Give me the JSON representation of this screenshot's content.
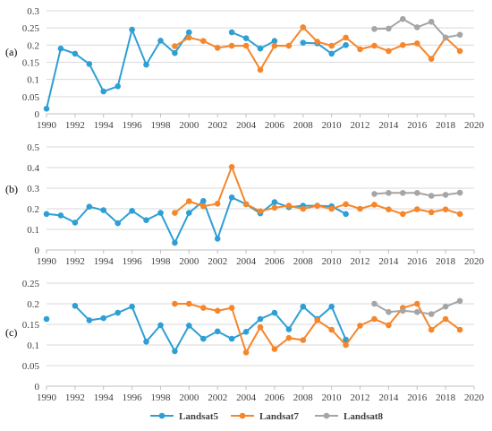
{
  "colors": {
    "Landsat5": "#2e9fd4",
    "Landsat7": "#f5862b",
    "Landsat8": "#a5a5a5"
  },
  "legend": [
    "Landsat5",
    "Landsat7",
    "Landsat8"
  ],
  "chart_data": [
    {
      "type": "line",
      "panel_label": "(a)",
      "xlim": [
        1990,
        2020
      ],
      "ylim": [
        0,
        0.3
      ],
      "x_ticks": [
        "1990",
        "1992",
        "1994",
        "1996",
        "1998",
        "2000",
        "2002",
        "2004",
        "2006",
        "2008",
        "2010",
        "2012",
        "2014",
        "2016",
        "2018",
        "2020"
      ],
      "y_ticks": [
        "0",
        "0.05",
        "0.1",
        "0.15",
        "0.2",
        "0.25",
        "0.3"
      ],
      "grid": "horizontal",
      "legend_position": "bottom",
      "series": [
        {
          "name": "Landsat5",
          "points": [
            [
              1990,
              0.015
            ],
            [
              1991,
              0.19
            ],
            [
              1992,
              0.175
            ],
            [
              1993,
              0.145
            ],
            [
              1994,
              0.065
            ],
            [
              1995,
              0.08
            ],
            [
              1996,
              0.245
            ],
            [
              1997,
              0.143
            ],
            [
              1998,
              0.213
            ],
            [
              1999,
              0.177
            ],
            [
              2000,
              0.237
            ],
            null,
            [
              2003,
              0.237
            ],
            [
              2004,
              0.22
            ],
            [
              2005,
              0.19
            ],
            [
              2006,
              0.212
            ],
            null,
            [
              2008,
              0.207
            ],
            [
              2009,
              0.205
            ],
            [
              2010,
              0.175
            ],
            [
              2011,
              0.2
            ]
          ]
        },
        {
          "name": "Landsat7",
          "points": [
            [
              1999,
              0.197
            ],
            [
              2000,
              0.222
            ],
            [
              2001,
              0.212
            ],
            [
              2002,
              0.192
            ],
            [
              2003,
              0.198
            ],
            [
              2004,
              0.198
            ],
            [
              2005,
              0.128
            ],
            [
              2006,
              0.198
            ],
            [
              2007,
              0.198
            ],
            [
              2008,
              0.252
            ],
            [
              2009,
              0.21
            ],
            [
              2010,
              0.198
            ],
            [
              2011,
              0.222
            ],
            [
              2012,
              0.188
            ],
            [
              2013,
              0.198
            ],
            [
              2014,
              0.183
            ],
            [
              2015,
              0.2
            ],
            [
              2016,
              0.205
            ],
            [
              2017,
              0.16
            ],
            [
              2018,
              0.222
            ],
            [
              2019,
              0.183
            ]
          ]
        },
        {
          "name": "Landsat8",
          "points": [
            [
              2013,
              0.247
            ],
            [
              2014,
              0.248
            ],
            [
              2015,
              0.276
            ],
            [
              2016,
              0.252
            ],
            [
              2017,
              0.268
            ],
            [
              2018,
              0.222
            ],
            [
              2019,
              0.23
            ]
          ]
        }
      ]
    },
    {
      "type": "line",
      "panel_label": "(b)",
      "xlim": [
        1990,
        2020
      ],
      "ylim": [
        0,
        0.5
      ],
      "x_ticks": [
        "1990",
        "1992",
        "1994",
        "1996",
        "1998",
        "2000",
        "2002",
        "2004",
        "2006",
        "2008",
        "2010",
        "2012",
        "2014",
        "2016",
        "2018",
        "2020"
      ],
      "y_ticks": [
        "0",
        "0.1",
        "0.2",
        "0.3",
        "0.4",
        "0.5"
      ],
      "grid": "horizontal",
      "legend_position": "bottom",
      "series": [
        {
          "name": "Landsat5",
          "points": [
            [
              1990,
              0.175
            ],
            [
              1991,
              0.168
            ],
            [
              1992,
              0.133
            ],
            [
              1993,
              0.21
            ],
            [
              1994,
              0.193
            ],
            [
              1995,
              0.13
            ],
            [
              1996,
              0.19
            ],
            [
              1997,
              0.145
            ],
            [
              1998,
              0.18
            ],
            [
              1999,
              0.035
            ],
            [
              2000,
              0.18
            ],
            [
              2001,
              0.238
            ],
            [
              2002,
              0.055
            ],
            [
              2003,
              0.255
            ],
            [
              2004,
              0.222
            ],
            [
              2005,
              0.178
            ],
            [
              2006,
              0.232
            ],
            [
              2007,
              0.208
            ],
            [
              2008,
              0.215
            ],
            [
              2009,
              0.215
            ],
            [
              2010,
              0.212
            ],
            [
              2011,
              0.175
            ]
          ]
        },
        {
          "name": "Landsat7",
          "points": [
            [
              1999,
              0.18
            ],
            [
              2000,
              0.237
            ],
            [
              2001,
              0.212
            ],
            [
              2002,
              0.225
            ],
            [
              2003,
              0.403
            ],
            [
              2004,
              0.222
            ],
            [
              2005,
              0.188
            ],
            [
              2006,
              0.205
            ],
            [
              2007,
              0.215
            ],
            [
              2008,
              0.2
            ],
            [
              2009,
              0.215
            ],
            [
              2010,
              0.2
            ],
            [
              2011,
              0.222
            ],
            [
              2012,
              0.2
            ],
            [
              2013,
              0.22
            ],
            [
              2014,
              0.197
            ],
            [
              2015,
              0.175
            ],
            [
              2016,
              0.198
            ],
            [
              2017,
              0.183
            ],
            [
              2018,
              0.197
            ],
            [
              2019,
              0.175
            ]
          ]
        },
        {
          "name": "Landsat8",
          "points": [
            [
              2013,
              0.272
            ],
            [
              2014,
              0.277
            ],
            [
              2015,
              0.277
            ],
            [
              2016,
              0.277
            ],
            [
              2017,
              0.263
            ],
            [
              2018,
              0.268
            ],
            [
              2019,
              0.278
            ]
          ]
        }
      ]
    },
    {
      "type": "line",
      "panel_label": "(c)",
      "xlim": [
        1990,
        2020
      ],
      "ylim": [
        0,
        0.25
      ],
      "x_ticks": [
        "1990",
        "1992",
        "1994",
        "1996",
        "1998",
        "2000",
        "2002",
        "2004",
        "2006",
        "2008",
        "2010",
        "2012",
        "2014",
        "2016",
        "2018",
        "2020"
      ],
      "y_ticks": [
        "0",
        "0.05",
        "0.1",
        "0.15",
        "0.2",
        "0.25"
      ],
      "grid": "horizontal",
      "legend_position": "bottom",
      "series": [
        {
          "name": "Landsat5",
          "points": [
            [
              1990,
              0.163
            ],
            null,
            [
              1992,
              0.195
            ],
            [
              1993,
              0.16
            ],
            [
              1994,
              0.165
            ],
            [
              1995,
              0.178
            ],
            [
              1996,
              0.193
            ],
            [
              1997,
              0.108
            ],
            [
              1998,
              0.148
            ],
            [
              1999,
              0.085
            ],
            [
              2000,
              0.147
            ],
            [
              2001,
              0.115
            ],
            [
              2002,
              0.133
            ],
            [
              2003,
              0.115
            ],
            [
              2004,
              0.132
            ],
            [
              2005,
              0.163
            ],
            [
              2006,
              0.178
            ],
            [
              2007,
              0.138
            ],
            [
              2008,
              0.193
            ],
            [
              2009,
              0.163
            ],
            [
              2010,
              0.193
            ],
            [
              2011,
              0.113
            ]
          ]
        },
        {
          "name": "Landsat7",
          "points": [
            [
              1999,
              0.2
            ],
            [
              2000,
              0.2
            ],
            [
              2001,
              0.19
            ],
            [
              2002,
              0.183
            ],
            [
              2003,
              0.19
            ],
            [
              2004,
              0.082
            ],
            [
              2005,
              0.143
            ],
            [
              2006,
              0.09
            ],
            [
              2007,
              0.117
            ],
            [
              2008,
              0.112
            ],
            [
              2009,
              0.16
            ],
            [
              2010,
              0.137
            ],
            [
              2011,
              0.1
            ],
            [
              2012,
              0.147
            ],
            [
              2013,
              0.163
            ],
            [
              2014,
              0.148
            ],
            [
              2015,
              0.19
            ],
            [
              2016,
              0.2
            ],
            [
              2017,
              0.137
            ],
            [
              2018,
              0.163
            ],
            [
              2019,
              0.137
            ]
          ]
        },
        {
          "name": "Landsat8",
          "points": [
            [
              2013,
              0.2
            ],
            [
              2014,
              0.18
            ],
            [
              2015,
              0.183
            ],
            [
              2016,
              0.18
            ],
            [
              2017,
              0.175
            ],
            [
              2018,
              0.193
            ],
            [
              2019,
              0.207
            ]
          ]
        }
      ]
    }
  ]
}
